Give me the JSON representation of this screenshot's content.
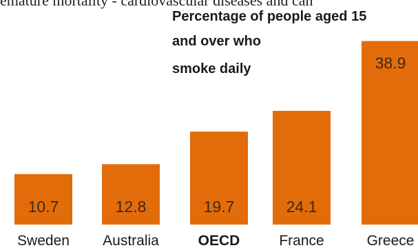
{
  "top_text": "emature mortality - cardiovascular diseases and can",
  "chart_data": {
    "type": "bar",
    "title_lines": [
      "Percentage of people aged 15",
      "and over who",
      "smoke daily"
    ],
    "categories": [
      "Sweden",
      "Australia",
      "OECD",
      "France",
      "Greece"
    ],
    "values": [
      10.7,
      12.8,
      19.7,
      24.1,
      38.9
    ],
    "value_labels": [
      "10.7",
      "12.8",
      "19.7",
      "24.1",
      "38.9"
    ],
    "highlighted_category": "OECD",
    "bar_color": "#E36C0A",
    "text_color": "#1a1a1a",
    "grid": false,
    "legend": "none"
  }
}
